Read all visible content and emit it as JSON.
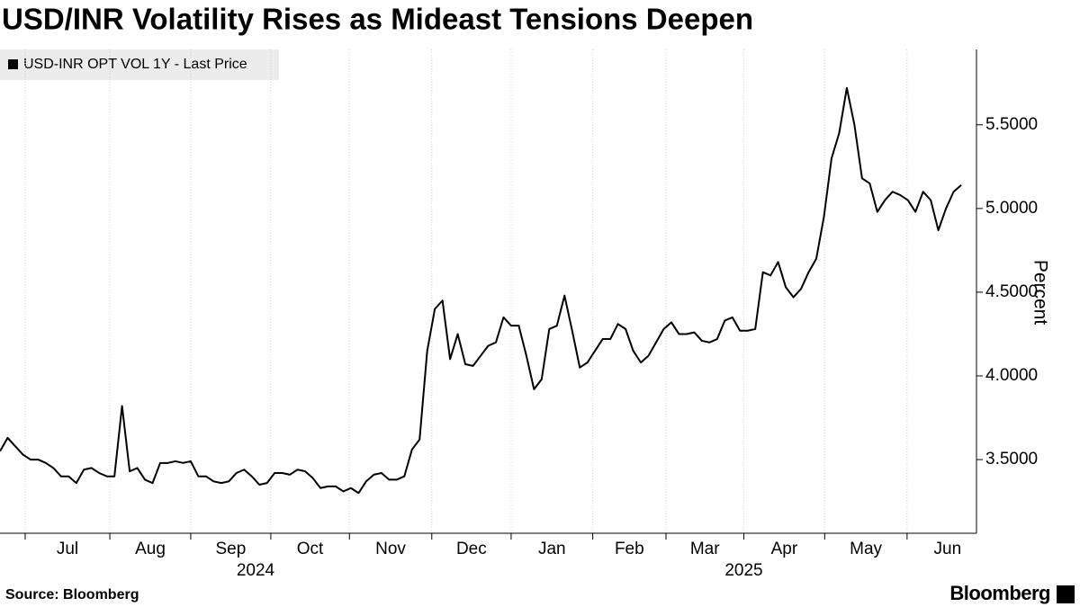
{
  "chart_data": {
    "type": "line",
    "title": "USD/INR Volatility Rises as Mideast Tensions Deepen",
    "y_label": "Percent",
    "source": "Source: Bloomberg",
    "brand": "Bloomberg",
    "legend": "top-left",
    "grid": true,
    "xlim": [
      0,
      128
    ],
    "xticks": [
      {
        "value": 3.3,
        "label": "Jul"
      },
      {
        "value": 14.4,
        "label": "Aug"
      },
      {
        "value": 25,
        "label": "Sep"
      },
      {
        "value": 35.5,
        "label": "Oct"
      },
      {
        "value": 45.8,
        "label": "Nov"
      },
      {
        "value": 56.6,
        "label": "Dec"
      },
      {
        "value": 67,
        "label": "Jan"
      },
      {
        "value": 77.7,
        "label": "Feb"
      },
      {
        "value": 87.3,
        "label": "Mar"
      },
      {
        "value": 97.5,
        "label": "Apr"
      },
      {
        "value": 108.1,
        "label": "May"
      },
      {
        "value": 118.9,
        "label": "Jun"
      }
    ],
    "year_ticks": [
      {
        "value": 33.5,
        "label": "2024"
      },
      {
        "value": 97.5,
        "label": "2025"
      }
    ],
    "ylim": [
      3.06,
      5.95
    ],
    "yticks": [
      {
        "value": 3.5,
        "label": "3.5000"
      },
      {
        "value": 4,
        "label": "4.0000"
      },
      {
        "value": 4.5,
        "label": "4.5000"
      },
      {
        "value": 5,
        "label": "5.0000"
      },
      {
        "value": 5.5,
        "label": "5.5000"
      }
    ],
    "series": [
      {
        "name": "USD-INR OPT VOL 1Y - Last Price",
        "color": "#000000",
        "values": [
          3.55,
          3.63,
          3.58,
          3.53,
          3.5,
          3.5,
          3.48,
          3.45,
          3.4,
          3.4,
          3.36,
          3.44,
          3.45,
          3.42,
          3.4,
          3.4,
          3.82,
          3.43,
          3.45,
          3.38,
          3.36,
          3.48,
          3.48,
          3.49,
          3.48,
          3.49,
          3.4,
          3.4,
          3.37,
          3.36,
          3.37,
          3.42,
          3.44,
          3.4,
          3.35,
          3.36,
          3.42,
          3.42,
          3.41,
          3.44,
          3.43,
          3.39,
          3.33,
          3.34,
          3.34,
          3.31,
          3.33,
          3.3,
          3.37,
          3.41,
          3.42,
          3.38,
          3.38,
          3.4,
          3.56,
          3.62,
          4.15,
          4.4,
          4.45,
          4.1,
          4.25,
          4.07,
          4.06,
          4.12,
          4.18,
          4.2,
          4.35,
          4.3,
          4.3,
          4.12,
          3.92,
          3.98,
          4.28,
          4.3,
          4.48,
          4.27,
          4.05,
          4.08,
          4.15,
          4.22,
          4.22,
          4.31,
          4.28,
          4.15,
          4.08,
          4.12,
          4.2,
          4.28,
          4.32,
          4.25,
          4.25,
          4.26,
          4.21,
          4.2,
          4.22,
          4.33,
          4.35,
          4.27,
          4.27,
          4.28,
          4.62,
          4.6,
          4.68,
          4.53,
          4.47,
          4.52,
          4.62,
          4.7,
          4.95,
          5.3,
          5.45,
          5.72,
          5.5,
          5.18,
          5.15,
          4.98,
          5.05,
          5.1,
          5.08,
          5.05,
          4.98,
          5.1,
          5.05,
          4.87,
          5.0,
          5.1,
          5.14
        ]
      }
    ]
  }
}
